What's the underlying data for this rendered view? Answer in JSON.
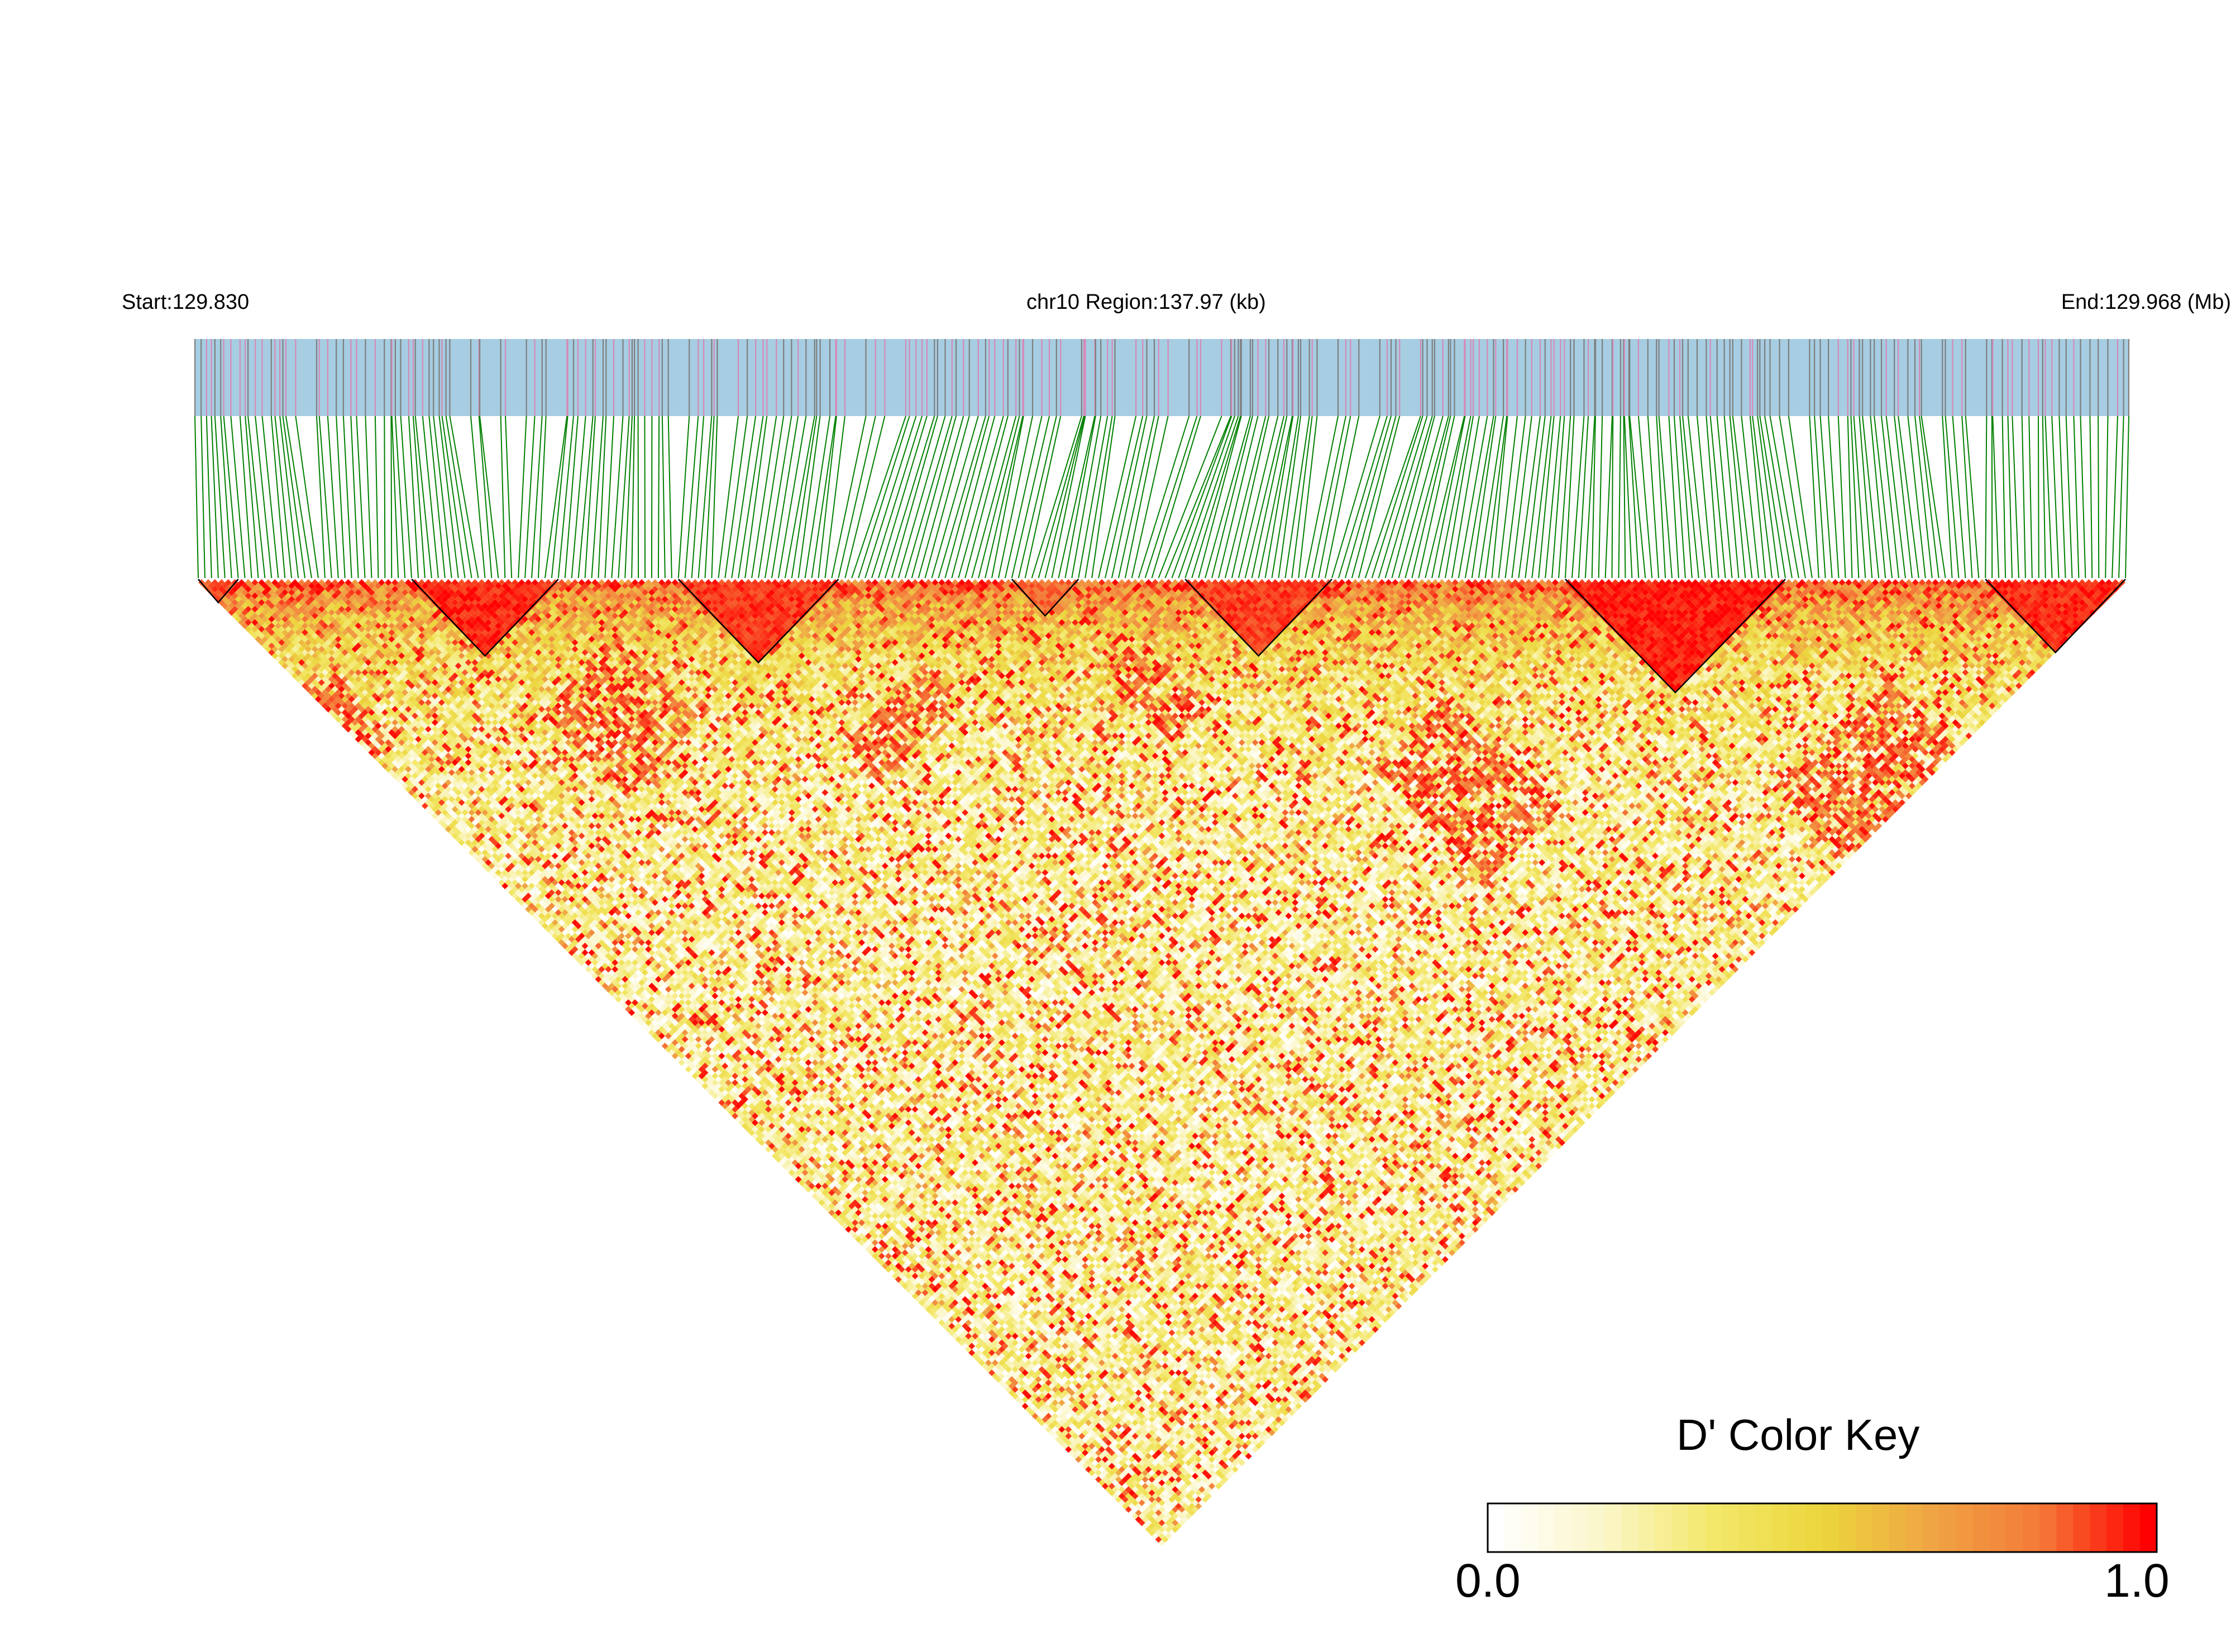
{
  "chart_data": {
    "type": "heatmap",
    "subtype": "linkage-disequilibrium-triangle",
    "chromosome": "chr10",
    "header": {
      "start_label": "Start:129.830",
      "region_label": "chr10 Region:137.97 (kb)",
      "end_label": "End:129.968 (Mb)"
    },
    "region": {
      "start_mb": 129.83,
      "end_mb": 129.968,
      "length_kb": 137.97
    },
    "n_snps": 290,
    "metric": "D'",
    "color_key": {
      "title": "D' Color Key",
      "min_label": "0.0",
      "max_label": "1.0",
      "range": [
        0.0,
        1.0
      ],
      "stops": [
        "#ffffff",
        "#fbf6c8",
        "#f3e86a",
        "#ecd63c",
        "#efa544",
        "#f47a38",
        "#ff0000"
      ]
    },
    "colors": {
      "track_fill": "#a6cde2",
      "snp_tick_common": "#7f7f7f",
      "snp_tick_rare": "#d58ab8",
      "connector": "#008000",
      "block_outline": "#000000"
    },
    "ld_blocks": [
      {
        "snp_start": 0,
        "snp_end": 6,
        "mean_dprime": 0.9
      },
      {
        "snp_start": 32,
        "snp_end": 54,
        "mean_dprime": 0.95
      },
      {
        "snp_start": 72,
        "snp_end": 96,
        "mean_dprime": 0.93
      },
      {
        "snp_start": 122,
        "snp_end": 132,
        "mean_dprime": 0.85
      },
      {
        "snp_start": 148,
        "snp_end": 170,
        "mean_dprime": 0.92
      },
      {
        "snp_start": 205,
        "snp_end": 238,
        "mean_dprime": 0.97
      },
      {
        "snp_start": 268,
        "snp_end": 289,
        "mean_dprime": 0.95
      }
    ]
  }
}
